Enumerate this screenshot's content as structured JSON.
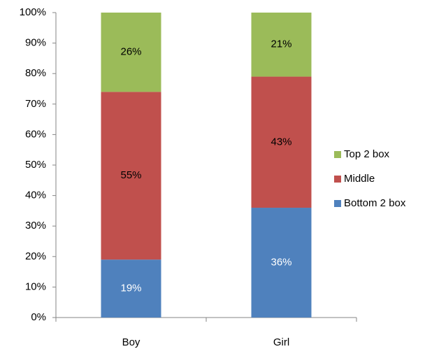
{
  "chart_data": {
    "type": "stacked_bar",
    "categories": [
      "Boy",
      "Girl"
    ],
    "series": [
      {
        "name": "Bottom 2 box",
        "color": "#4f81bd",
        "label_color": "#ffffff",
        "values": [
          19,
          36
        ],
        "value_labels": [
          "19%",
          "36%"
        ]
      },
      {
        "name": "Middle",
        "color": "#c0504d",
        "label_color": "#000000",
        "values": [
          55,
          43
        ],
        "value_labels": [
          "55%",
          "43%"
        ]
      },
      {
        "name": "Top 2 box",
        "color": "#9bbb59",
        "label_color": "#000000",
        "values": [
          26,
          21
        ],
        "value_labels": [
          "26%",
          "21%"
        ]
      }
    ],
    "ylim": [
      0,
      100
    ],
    "yticks": [
      {
        "value": 0,
        "label": "0%"
      },
      {
        "value": 10,
        "label": "10%"
      },
      {
        "value": 20,
        "label": "20%"
      },
      {
        "value": 30,
        "label": "30%"
      },
      {
        "value": 40,
        "label": "40%"
      },
      {
        "value": 50,
        "label": "50%"
      },
      {
        "value": 60,
        "label": "60%"
      },
      {
        "value": 70,
        "label": "70%"
      },
      {
        "value": 80,
        "label": "80%"
      },
      {
        "value": 90,
        "label": "90%"
      },
      {
        "value": 100,
        "label": "100%"
      }
    ],
    "legend": "right"
  }
}
